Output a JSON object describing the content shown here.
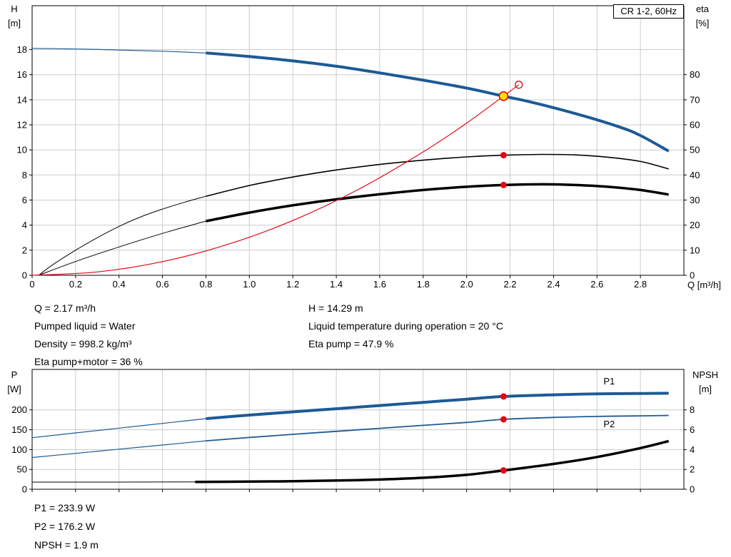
{
  "colors": {
    "blue": "#1d5a96",
    "red": "#e30613",
    "yellow": "#ffe200",
    "black": "#000000",
    "grid": "#cccccc",
    "axis": "#000000"
  },
  "title_box": {
    "label": "CR 1-2, 60Hz"
  },
  "axes_labels": {
    "h_name": "H",
    "h_unit": "[m]",
    "eta_name": "eta",
    "eta_unit": "[%]",
    "q_label": "Q [m³/h]",
    "p_name": "P",
    "p_unit": "[W]",
    "npsh_name": "NPSH",
    "npsh_unit": "[m]"
  },
  "info_top_left": [
    "Q = 2.17 m³/h",
    "Pumped liquid = Water",
    "Density = 998.2 kg/m³",
    "Eta pump+motor = 36 %"
  ],
  "info_top_right": [
    "H = 14.29 m",
    "Liquid temperature during operation = 20 °C",
    "Eta pump = 47.9 %"
  ],
  "info_bottom": [
    "P1 = 233.9 W",
    "P2 = 176.2 W",
    "NPSH = 1.9 m"
  ],
  "chart_data": [
    {
      "type": "line",
      "title": "CR 1-2, 60Hz",
      "xlabel": "Q [m³/h]",
      "ylabel": "H [m]",
      "y2label": "eta [%]",
      "xlim": [
        0,
        3.0
      ],
      "ylim": [
        0,
        21.5
      ],
      "y2lim": [
        0,
        107.5
      ],
      "xticks": [
        0,
        0.2,
        0.4,
        0.6,
        0.8,
        1.0,
        1.2,
        1.4,
        1.6,
        1.8,
        2.0,
        2.2,
        2.4,
        2.6,
        2.8
      ],
      "xtick_labels": [
        "0",
        "0.2",
        "0.4",
        "0.6",
        "0.8",
        "1.0",
        "1.2",
        "1.4",
        "1.6",
        "1.8",
        "2.0",
        "2.2",
        "2.4",
        "2.6",
        "2.8"
      ],
      "yticks": [
        0,
        2,
        4,
        6,
        8,
        10,
        12,
        14,
        16,
        18
      ],
      "y2ticks": [
        0,
        10,
        20,
        30,
        40,
        50,
        60,
        70,
        80
      ],
      "series": [
        {
          "name": "h-curve-extension",
          "axis": "y",
          "color": "#1d5a96",
          "width": 1.2,
          "points": [
            [
              0,
              18.1
            ],
            [
              0.2,
              18.05
            ],
            [
              0.4,
              17.97
            ],
            [
              0.6,
              17.87
            ],
            [
              0.8,
              17.73
            ]
          ]
        },
        {
          "name": "h-curve",
          "axis": "y",
          "color": "#1d5a96",
          "width": 4,
          "points": [
            [
              0.8,
              17.73
            ],
            [
              1.0,
              17.45
            ],
            [
              1.2,
              17.1
            ],
            [
              1.4,
              16.67
            ],
            [
              1.6,
              16.14
            ],
            [
              1.8,
              15.56
            ],
            [
              2.0,
              14.93
            ],
            [
              2.17,
              14.29
            ],
            [
              2.3,
              13.8
            ],
            [
              2.5,
              12.9
            ],
            [
              2.7,
              11.85
            ],
            [
              2.8,
              11.15
            ],
            [
              2.93,
              9.9
            ]
          ]
        },
        {
          "name": "eta-pump-extension",
          "axis": "y2",
          "color": "#000000",
          "width": 1,
          "points": [
            [
              0.03,
              0
            ],
            [
              0.1,
              4.5
            ],
            [
              0.2,
              10
            ],
            [
              0.3,
              15
            ],
            [
              0.4,
              19.5
            ],
            [
              0.5,
              23.3
            ],
            [
              0.6,
              26.4
            ],
            [
              0.7,
              29.1
            ],
            [
              0.8,
              31.5
            ]
          ]
        },
        {
          "name": "eta-pump-curve",
          "axis": "y2",
          "color": "#000000",
          "width": 1.6,
          "points": [
            [
              0.8,
              31.5
            ],
            [
              1.0,
              35.8
            ],
            [
              1.2,
              39.2
            ],
            [
              1.4,
              42.0
            ],
            [
              1.6,
              44.2
            ],
            [
              1.8,
              45.9
            ],
            [
              2.0,
              47.2
            ],
            [
              2.17,
              47.9
            ],
            [
              2.35,
              48.2
            ],
            [
              2.5,
              48.0
            ],
            [
              2.65,
              47.1
            ],
            [
              2.8,
              45.4
            ],
            [
              2.93,
              42.4
            ]
          ]
        },
        {
          "name": "eta-pump-motor-extension",
          "axis": "y2",
          "color": "#000000",
          "width": 1,
          "points": [
            [
              0.03,
              0
            ],
            [
              0.2,
              5.5
            ],
            [
              0.4,
              11.3
            ],
            [
              0.6,
              16.7
            ],
            [
              0.8,
              21.6
            ]
          ]
        },
        {
          "name": "eta-pump-motor-curve",
          "axis": "y2",
          "color": "#000000",
          "width": 3.5,
          "points": [
            [
              0.8,
              21.6
            ],
            [
              1.0,
              25.0
            ],
            [
              1.2,
              27.9
            ],
            [
              1.4,
              30.3
            ],
            [
              1.6,
              32.3
            ],
            [
              1.8,
              34.0
            ],
            [
              2.0,
              35.3
            ],
            [
              2.17,
              36.0
            ],
            [
              2.35,
              36.3
            ],
            [
              2.5,
              36.0
            ],
            [
              2.65,
              35.3
            ],
            [
              2.8,
              34.0
            ],
            [
              2.93,
              32.2
            ]
          ]
        },
        {
          "name": "system-curve",
          "axis": "y",
          "color": "#e30613",
          "width": 1.2,
          "points": [
            [
              0,
              0
            ],
            [
              0.3,
              0.27
            ],
            [
              0.6,
              1.09
            ],
            [
              0.9,
              2.46
            ],
            [
              1.2,
              4.37
            ],
            [
              1.5,
              6.83
            ],
            [
              1.8,
              9.84
            ],
            [
              2.0,
              12.14
            ],
            [
              2.17,
              14.29
            ],
            [
              2.24,
              15.2
            ]
          ]
        }
      ],
      "markers": [
        {
          "name": "requested-duty-point",
          "x": 2.24,
          "y": 15.2,
          "axis": "y",
          "r": 5,
          "fill": "none",
          "stroke": "#e30613",
          "sw": 1.3,
          "interactable": true
        },
        {
          "name": "duty-point",
          "x": 2.17,
          "y": 14.29,
          "axis": "y",
          "r": 6,
          "fill": "#ffe200",
          "stroke": "#e30613",
          "sw": 1.6,
          "interactable": true
        },
        {
          "name": "eta-pump-point",
          "x": 2.17,
          "y": 47.9,
          "axis": "y2",
          "r": 4.5,
          "fill": "#e30613",
          "stroke": "none",
          "sw": 0,
          "interactable": false
        },
        {
          "name": "eta-pump-motor-point",
          "x": 2.17,
          "y": 36.0,
          "axis": "y2",
          "r": 4.5,
          "fill": "#e30613",
          "stroke": "none",
          "sw": 0,
          "interactable": false
        }
      ],
      "labels": []
    },
    {
      "type": "line",
      "title": "",
      "xlabel": "",
      "ylabel": "P [W]",
      "y2label": "NPSH [m]",
      "xlim": [
        0,
        3.0
      ],
      "ylim": [
        0,
        302
      ],
      "y2lim": [
        0,
        12.08
      ],
      "xticks": [
        0,
        0.2,
        0.4,
        0.6,
        0.8,
        1.0,
        1.2,
        1.4,
        1.6,
        1.8,
        2.0,
        2.2,
        2.4,
        2.6,
        2.8
      ],
      "xtick_labels": [],
      "yticks": [
        0,
        50,
        100,
        150,
        200
      ],
      "y2ticks": [
        0,
        2,
        4,
        6,
        8
      ],
      "series": [
        {
          "name": "p1-extension",
          "axis": "y",
          "color": "#1d5a96",
          "width": 1.2,
          "points": [
            [
              0,
              130
            ],
            [
              0.2,
              142
            ],
            [
              0.4,
              154
            ],
            [
              0.6,
              166
            ],
            [
              0.8,
              178
            ]
          ]
        },
        {
          "name": "p1-curve",
          "axis": "y",
          "color": "#1d5a96",
          "width": 4,
          "points": [
            [
              0.8,
              178
            ],
            [
              1.0,
              187
            ],
            [
              1.2,
              195
            ],
            [
              1.4,
              203
            ],
            [
              1.6,
              211
            ],
            [
              1.8,
              219
            ],
            [
              2.0,
              227
            ],
            [
              2.17,
              233.9
            ],
            [
              2.4,
              238
            ],
            [
              2.6,
              240.5
            ],
            [
              2.8,
              241.5
            ],
            [
              2.93,
              242
            ]
          ]
        },
        {
          "name": "p2-extension",
          "axis": "y",
          "color": "#1d5a96",
          "width": 1.2,
          "points": [
            [
              0,
              80
            ],
            [
              0.2,
              90.5
            ],
            [
              0.4,
              101
            ],
            [
              0.6,
              111.5
            ],
            [
              0.8,
              122
            ]
          ]
        },
        {
          "name": "p2-curve",
          "axis": "y",
          "color": "#1d5a96",
          "width": 1.8,
          "points": [
            [
              0.8,
              122
            ],
            [
              1.0,
              130.5
            ],
            [
              1.2,
              138.5
            ],
            [
              1.4,
              146
            ],
            [
              1.6,
              153.5
            ],
            [
              1.8,
              161
            ],
            [
              2.0,
              168.5
            ],
            [
              2.17,
              176.2
            ],
            [
              2.4,
              181
            ],
            [
              2.6,
              183.5
            ],
            [
              2.8,
              185
            ],
            [
              2.93,
              186
            ]
          ]
        },
        {
          "name": "npsh-extension",
          "axis": "y2",
          "color": "#000000",
          "width": 1,
          "points": [
            [
              0,
              0.72
            ],
            [
              0.4,
              0.72
            ],
            [
              0.75,
              0.74
            ]
          ]
        },
        {
          "name": "npsh-curve",
          "axis": "y2",
          "color": "#000000",
          "width": 3.5,
          "points": [
            [
              0.75,
              0.74
            ],
            [
              1.0,
              0.77
            ],
            [
              1.2,
              0.81
            ],
            [
              1.4,
              0.88
            ],
            [
              1.6,
              0.98
            ],
            [
              1.8,
              1.16
            ],
            [
              2.0,
              1.45
            ],
            [
              2.17,
              1.9
            ],
            [
              2.4,
              2.55
            ],
            [
              2.6,
              3.25
            ],
            [
              2.8,
              4.15
            ],
            [
              2.93,
              4.85
            ]
          ]
        }
      ],
      "markers": [
        {
          "name": "p1-point",
          "x": 2.17,
          "y": 233.9,
          "axis": "y",
          "r": 4.5,
          "fill": "#e30613",
          "stroke": "none",
          "sw": 0,
          "interactable": false
        },
        {
          "name": "p2-point",
          "x": 2.17,
          "y": 176.2,
          "axis": "y",
          "r": 4.5,
          "fill": "#e30613",
          "stroke": "none",
          "sw": 0,
          "interactable": false
        },
        {
          "name": "npsh-point",
          "x": 2.17,
          "y": 1.9,
          "axis": "y2",
          "r": 4.5,
          "fill": "#e30613",
          "stroke": "none",
          "sw": 0,
          "interactable": false
        }
      ],
      "labels": [
        {
          "name": "p1-label",
          "text": "P1",
          "x": 2.63,
          "y": 264,
          "axis": "y",
          "color": "#1d5a96"
        },
        {
          "name": "p2-label",
          "text": "P2",
          "x": 2.63,
          "y": 156,
          "axis": "y",
          "color": "#1d5a96"
        }
      ]
    }
  ]
}
